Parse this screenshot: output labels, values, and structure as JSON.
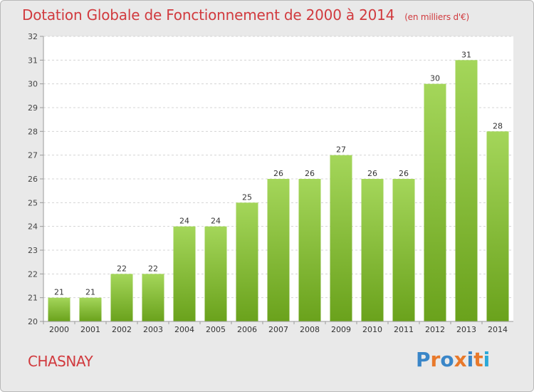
{
  "header": {
    "title": "Dotation Globale de Fonctionnement de 2000 à 2014",
    "subtitle": "(en milliers d'€)"
  },
  "footer": {
    "commune": "CHASNAY",
    "logo_text": "Proxiti"
  },
  "colors": {
    "title": "#d13a3e",
    "bar_light": "#a4d65a",
    "bar_dark": "#6aa21c",
    "plot_bg": "#ffffff",
    "frame_bg": "#e9e9e9",
    "gridline": "#d4d4d4",
    "logo_letters": [
      "#3a86c8",
      "#e8792b",
      "#3a86c8",
      "#e8792b",
      "#3a86c8",
      "#e8792b",
      "#2aa8d8"
    ]
  },
  "chart_data": {
    "type": "bar",
    "categories": [
      "2000",
      "2001",
      "2002",
      "2003",
      "2004",
      "2005",
      "2006",
      "2007",
      "2008",
      "2009",
      "2010",
      "2011",
      "2012",
      "2013",
      "2014"
    ],
    "values": [
      21,
      21,
      22,
      22,
      24,
      24,
      25,
      26,
      26,
      27,
      26,
      26,
      30,
      31,
      28
    ],
    "data_labels": [
      "21",
      "21",
      "22",
      "22",
      "24",
      "24",
      "25",
      "26",
      "26",
      "27",
      "26",
      "26",
      "30",
      "31",
      "28"
    ],
    "title": "Dotation Globale de Fonctionnement de 2000 à 2014",
    "subtitle": "(en milliers d'€)",
    "xlabel": "",
    "ylabel": "",
    "ylim": [
      20,
      32
    ],
    "yticks": [
      "20",
      "21",
      "22",
      "23",
      "24",
      "25",
      "26",
      "27",
      "28",
      "29",
      "30",
      "31",
      "32"
    ],
    "grid": true,
    "legend": "none"
  }
}
